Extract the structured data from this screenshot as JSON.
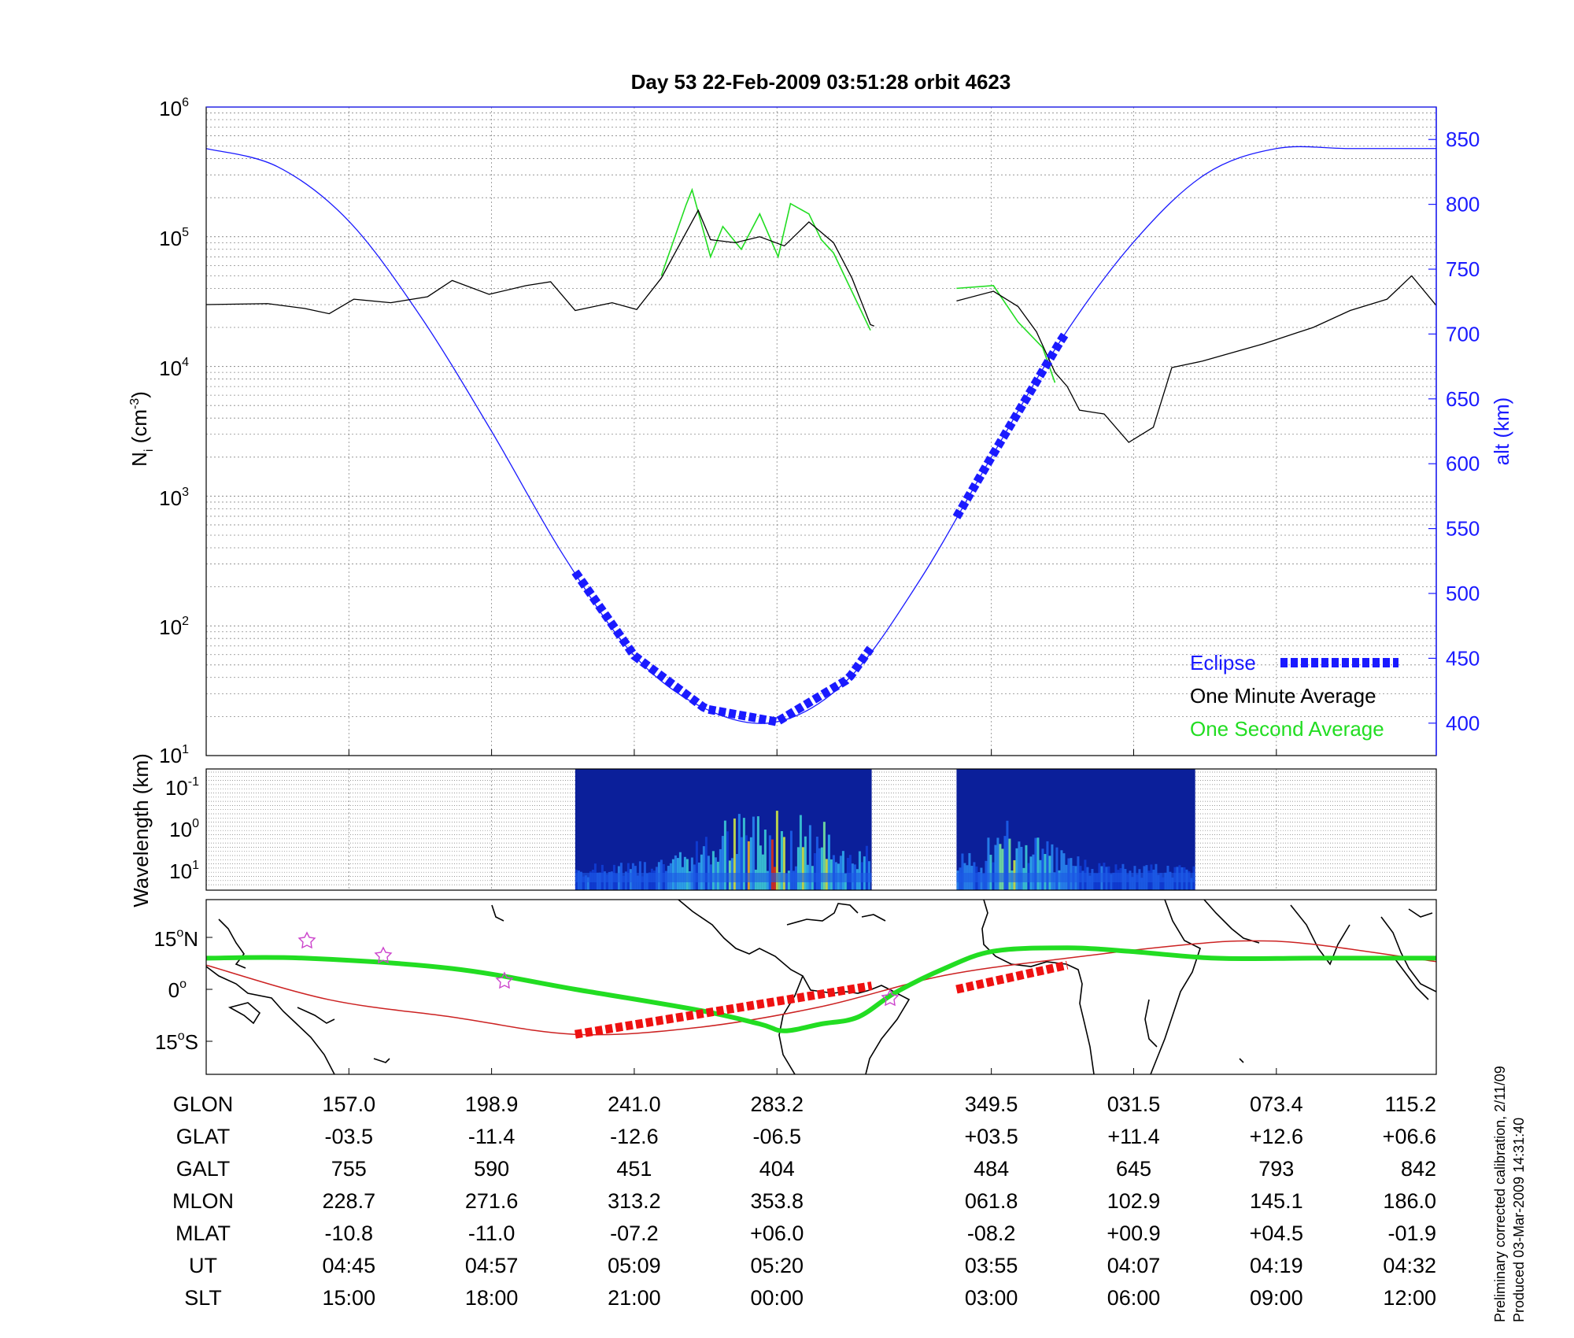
{
  "chart_data": [
    {
      "type": "line",
      "title": "Day 53  22-Feb-2009 03:51:28   orbit 4623",
      "ylabel": "N_i (cm^-3)",
      "y_scale": "log",
      "ylim": [
        10,
        1000000
      ],
      "y_ticks": [
        {
          "base": "10",
          "exp": "6"
        },
        {
          "base": "10",
          "exp": "5"
        },
        {
          "base": "10",
          "exp": "4"
        },
        {
          "base": "10",
          "exp": "3"
        },
        {
          "base": "10",
          "exp": "2"
        },
        {
          "base": "10",
          "exp": "1"
        }
      ],
      "y2label": "alt (km)",
      "y2lim": [
        375,
        875
      ],
      "y2_ticks": [
        "850",
        "800",
        "750",
        "700",
        "650",
        "600",
        "550",
        "500",
        "450",
        "400"
      ],
      "grid": true,
      "legend": {
        "position": "bottom-right",
        "entries": [
          {
            "label": "Eclipse",
            "color": "#1a1aff"
          },
          {
            "label": "One Minute Average",
            "color": "#000000"
          },
          {
            "label": "One Second Average",
            "color": "#22dd22"
          }
        ]
      },
      "x_fraction": [
        0,
        0.058,
        0.116,
        0.174,
        0.232,
        0.29,
        0.348,
        0.406,
        0.464,
        0.522,
        0.58,
        0.6383,
        0.696,
        0.754,
        0.812,
        0.87,
        0.928,
        0.986,
        1.0
      ],
      "altitude_km": [
        843,
        829,
        787,
        714,
        625,
        530,
        452,
        411,
        401,
        434,
        510,
        605,
        697,
        771,
        823,
        843,
        843,
        843,
        843
      ],
      "density_series": [
        {
          "name": "One Minute Average",
          "segments": [
            [
              [
                0,
                30000
              ],
              [
                0.05,
                30500
              ],
              [
                0.08,
                28000
              ],
              [
                0.1,
                25500
              ],
              [
                0.12,
                33000
              ],
              [
                0.15,
                31000
              ],
              [
                0.18,
                34500
              ],
              [
                0.2,
                46000
              ],
              [
                0.23,
                36000
              ],
              [
                0.26,
                42000
              ],
              [
                0.28,
                45000
              ],
              [
                0.3,
                27000
              ],
              [
                0.33,
                31000
              ],
              [
                0.35,
                27500
              ],
              [
                0.37,
                48000
              ],
              [
                0.4,
                160000
              ],
              [
                0.41,
                95000
              ],
              [
                0.43,
                90000
              ],
              [
                0.45,
                100000
              ],
              [
                0.47,
                85000
              ],
              [
                0.49,
                130000
              ],
              [
                0.51,
                90000
              ],
              [
                0.525,
                48000
              ],
              [
                0.54,
                21000
              ],
              [
                0.54,
                21000
              ],
              [
                0.543,
                20500
              ]
            ],
            [
              [
                0.61,
                32000
              ],
              [
                0.64,
                38000
              ],
              [
                0.66,
                29000
              ],
              [
                0.675,
                18500
              ],
              [
                0.69,
                9000
              ],
              [
                0.7,
                7000
              ],
              [
                0.71,
                4600
              ],
              [
                0.73,
                4300
              ],
              [
                0.75,
                2600
              ],
              [
                0.77,
                3400
              ],
              [
                0.785,
                9800
              ],
              [
                0.81,
                11000
              ],
              [
                0.86,
                15000
              ],
              [
                0.9,
                20000
              ],
              [
                0.93,
                27000
              ],
              [
                0.96,
                33000
              ],
              [
                0.98,
                50000
              ],
              [
                1.0,
                29500
              ]
            ]
          ]
        },
        {
          "name": "One Second Average",
          "segments": [
            [
              [
                0.37,
                50000
              ],
              [
                0.39,
                175000
              ],
              [
                0.395,
                230000
              ],
              [
                0.41,
                70000
              ],
              [
                0.42,
                120000
              ],
              [
                0.435,
                80000
              ],
              [
                0.45,
                150000
              ],
              [
                0.465,
                70000
              ],
              [
                0.475,
                180000
              ],
              [
                0.49,
                150000
              ],
              [
                0.5,
                95000
              ],
              [
                0.51,
                75000
              ],
              [
                0.54,
                19000
              ]
            ],
            [
              [
                0.61,
                40000
              ],
              [
                0.64,
                42000
              ],
              [
                0.66,
                22000
              ],
              [
                0.68,
                14000
              ],
              [
                0.69,
                7500
              ]
            ]
          ]
        }
      ],
      "eclipse_segments": [
        [
          0.3,
          0.541
        ],
        [
          0.61,
          0.7
        ]
      ]
    },
    {
      "type": "heatmap",
      "ylabel": "Wavelength (km)",
      "y_ticks": [
        {
          "base": "10",
          "exp": "-1"
        },
        {
          "base": "10",
          "exp": "0"
        },
        {
          "base": "10",
          "exp": "1"
        }
      ],
      "data_blocks_x_fraction": [
        [
          0.3,
          0.541
        ],
        [
          0.61,
          0.804
        ]
      ]
    },
    {
      "type": "map",
      "y_ticks": [
        {
          "value": "15",
          "unit": "N"
        },
        {
          "value": "0",
          "unit": ""
        },
        {
          "value": "15",
          "unit": "S"
        }
      ],
      "ground_track_lat": [
        [
          0,
          9
        ],
        [
          0.08,
          9
        ],
        [
          0.2,
          6
        ],
        [
          0.3,
          0
        ],
        [
          0.4,
          -6
        ],
        [
          0.45,
          -10
        ],
        [
          0.47,
          -12
        ],
        [
          0.5,
          -10
        ],
        [
          0.53,
          -8
        ],
        [
          0.56,
          -1
        ],
        [
          0.6,
          6
        ],
        [
          0.64,
          11
        ],
        [
          0.7,
          12
        ],
        [
          0.75,
          11
        ],
        [
          0.82,
          9
        ],
        [
          0.9,
          9
        ],
        [
          1.0,
          9
        ]
      ],
      "magnetic_equator_lat": [
        [
          0,
          7
        ],
        [
          0.1,
          -3
        ],
        [
          0.2,
          -8
        ],
        [
          0.3,
          -13
        ],
        [
          0.4,
          -11
        ],
        [
          0.5,
          -5
        ],
        [
          0.6,
          4
        ],
        [
          0.7,
          9
        ],
        [
          0.8,
          13
        ],
        [
          0.85,
          14
        ],
        [
          0.9,
          13
        ],
        [
          1.0,
          8
        ]
      ],
      "eclipse_segments": [
        [
          0.3,
          0.541
        ],
        [
          0.61,
          0.7
        ]
      ]
    }
  ],
  "ephemeris": {
    "row_labels": [
      "GLON",
      "GLAT",
      "GALT",
      "MLON",
      "MLAT",
      "UT",
      "SLT"
    ],
    "columns": [
      [
        "157.0",
        "-03.5",
        "755",
        "228.7",
        "-10.8",
        "04:45",
        "15:00"
      ],
      [
        "198.9",
        "-11.4",
        "590",
        "271.6",
        "-11.0",
        "04:57",
        "18:00"
      ],
      [
        "241.0",
        "-12.6",
        "451",
        "313.2",
        "-07.2",
        "05:09",
        "21:00"
      ],
      [
        "283.2",
        "-06.5",
        "404",
        "353.8",
        "+06.0",
        "05:20",
        "00:00"
      ],
      [
        "349.5",
        "+03.5",
        "484",
        "061.8",
        "-08.2",
        "03:55",
        "03:00"
      ],
      [
        "031.5",
        "+11.4",
        "645",
        "102.9",
        "+00.9",
        "04:07",
        "06:00"
      ],
      [
        "073.4",
        "+12.6",
        "793",
        "145.1",
        "+04.5",
        "04:19",
        "09:00"
      ],
      [
        "115.2",
        "+06.6",
        "842",
        "186.0",
        "-01.9",
        "04:32",
        "12:00"
      ]
    ]
  },
  "notes": [
    "Preliminary corrected calibration, 2/11/09",
    "Produced 03-Mar-2009 14:31:40"
  ],
  "colors": {
    "altitude": "#1a1aff",
    "minute_avg": "#000000",
    "second_avg": "#22dd22",
    "ground_track": "#22dd22",
    "magnetic_equator": "#cc2222",
    "eclipse_track": "#ee1111",
    "stars": "#cc44cc"
  }
}
